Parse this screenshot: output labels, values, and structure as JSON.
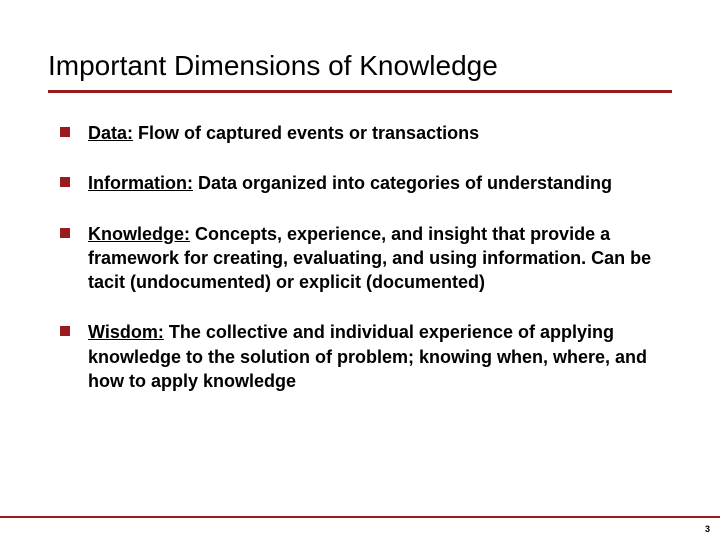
{
  "slide": {
    "title": "Important Dimensions of Knowledge",
    "title_fontsize": 28,
    "title_color": "#000000",
    "title_rule_color": "#9a1b1e",
    "title_rule_height": 3,
    "bullets": [
      {
        "term": "Data:",
        "body": " Flow of captured events or transactions"
      },
      {
        "term": "Information:",
        "body": " Data organized into categories of understanding"
      },
      {
        "term": "Knowledge:",
        "body": " Concepts, experience, and insight that provide a framework for creating, evaluating, and using information. Can be tacit (undocumented) or explicit (documented)"
      },
      {
        "term": "Wisdom:",
        "body": " The collective and individual experience of applying knowledge to the solution of problem;  knowing when, where, and how to apply knowledge"
      }
    ],
    "bullet_marker_color": "#9a1b1e",
    "bullet_marker_size": 10,
    "bullet_fontsize": 18,
    "bullet_text_color": "#000000",
    "bullet_spacing": 26,
    "footer_rule_color": "#9a1b1e",
    "footer_rule_height": 2,
    "page_number": "3",
    "page_number_fontsize": 9,
    "background_color": "#ffffff"
  }
}
